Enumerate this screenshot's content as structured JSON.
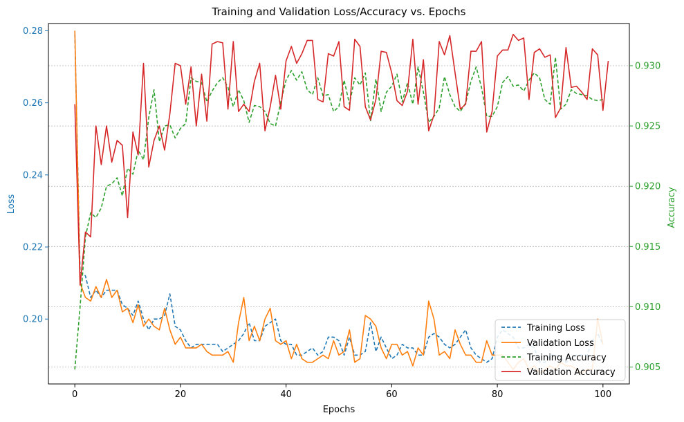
{
  "chart_data": {
    "type": "line",
    "title": "Training and Validation Loss/Accuracy vs. Epochs",
    "xlabel": "Epochs",
    "ylabel_left": "Loss",
    "ylabel_right": "Accuracy",
    "xlim": [
      -5,
      105
    ],
    "ylim_left": [
      0.182,
      0.282
    ],
    "ylim_right": [
      0.9036,
      0.9335
    ],
    "xticks": [
      0,
      20,
      40,
      60,
      80,
      100
    ],
    "yticks_left": [
      "0.20",
      "0.22",
      "0.24",
      "0.26",
      "0.28"
    ],
    "yticks_right": [
      "0.905",
      "0.910",
      "0.915",
      "0.920",
      "0.925",
      "0.930"
    ],
    "right_axis_grid": true,
    "legend_position": "lower-right",
    "left_axis_color": "#1f77b4",
    "right_axis_color": "#2ca02c",
    "series": [
      {
        "name": "Training Loss",
        "axis": "left",
        "color": "#1f77b4",
        "style": "dashed",
        "values": [
          0.279,
          0.213,
          0.212,
          0.206,
          0.208,
          0.206,
          0.208,
          0.208,
          0.208,
          0.204,
          0.203,
          0.201,
          0.205,
          0.2,
          0.197,
          0.2,
          0.2,
          0.201,
          0.207,
          0.198,
          0.197,
          0.194,
          0.192,
          0.193,
          0.193,
          0.193,
          0.193,
          0.193,
          0.191,
          0.192,
          0.193,
          0.194,
          0.196,
          0.199,
          0.194,
          0.194,
          0.198,
          0.199,
          0.2,
          0.194,
          0.193,
          0.193,
          0.19,
          0.19,
          0.191,
          0.192,
          0.19,
          0.191,
          0.195,
          0.195,
          0.194,
          0.19,
          0.195,
          0.19,
          0.19,
          0.191,
          0.199,
          0.191,
          0.195,
          0.192,
          0.189,
          0.19,
          0.193,
          0.192,
          0.192,
          0.19,
          0.19,
          0.195,
          0.196,
          0.195,
          0.193,
          0.192,
          0.193,
          0.195,
          0.197,
          0.192,
          0.19,
          0.189,
          0.188,
          0.189,
          0.195,
          0.197,
          0.196,
          0.195,
          0.192,
          0.192,
          0.193,
          0.192,
          0.188,
          0.188,
          0.19,
          0.19,
          0.189,
          0.188,
          0.189,
          0.19,
          0.19,
          0.19,
          0.194,
          0.196,
          0.193
        ]
      },
      {
        "name": "Validation Loss",
        "axis": "left",
        "color": "#ff7f0e",
        "style": "solid",
        "values": [
          0.28,
          0.21,
          0.206,
          0.205,
          0.209,
          0.206,
          0.211,
          0.206,
          0.208,
          0.202,
          0.203,
          0.199,
          0.204,
          0.198,
          0.2,
          0.198,
          0.197,
          0.203,
          0.197,
          0.193,
          0.195,
          0.192,
          0.192,
          0.192,
          0.193,
          0.191,
          0.19,
          0.19,
          0.19,
          0.191,
          0.188,
          0.199,
          0.206,
          0.194,
          0.198,
          0.194,
          0.2,
          0.203,
          0.194,
          0.193,
          0.194,
          0.189,
          0.193,
          0.189,
          0.188,
          0.188,
          0.189,
          0.19,
          0.189,
          0.194,
          0.19,
          0.191,
          0.197,
          0.188,
          0.189,
          0.201,
          0.2,
          0.198,
          0.192,
          0.189,
          0.193,
          0.193,
          0.19,
          0.191,
          0.187,
          0.192,
          0.19,
          0.205,
          0.2,
          0.19,
          0.191,
          0.189,
          0.197,
          0.193,
          0.19,
          0.19,
          0.188,
          0.188,
          0.194,
          0.19,
          0.19,
          0.19,
          0.188,
          0.186,
          0.188,
          0.189,
          0.186,
          0.187,
          0.185,
          0.186,
          0.187,
          0.186,
          0.188,
          0.187,
          0.187,
          0.186,
          0.185,
          0.186,
          0.186,
          0.2,
          0.193
        ]
      },
      {
        "name": "Training Accuracy",
        "axis": "right",
        "color": "#2ca02c",
        "style": "dashed",
        "values": [
          0.9048,
          0.91,
          0.9158,
          0.9178,
          0.9174,
          0.9182,
          0.92,
          0.9202,
          0.9207,
          0.9192,
          0.9215,
          0.921,
          0.923,
          0.9222,
          0.9257,
          0.928,
          0.9237,
          0.925,
          0.9251,
          0.924,
          0.9248,
          0.9252,
          0.929,
          0.9287,
          0.9286,
          0.927,
          0.9279,
          0.9286,
          0.929,
          0.9282,
          0.9266,
          0.928,
          0.9271,
          0.9253,
          0.9267,
          0.9266,
          0.9262,
          0.9252,
          0.925,
          0.927,
          0.9288,
          0.9296,
          0.9288,
          0.9295,
          0.928,
          0.9276,
          0.929,
          0.9275,
          0.9276,
          0.9262,
          0.9266,
          0.9288,
          0.9268,
          0.929,
          0.9284,
          0.9294,
          0.9254,
          0.9289,
          0.9262,
          0.9278,
          0.9283,
          0.9293,
          0.927,
          0.9286,
          0.9268,
          0.9299,
          0.9278,
          0.9253,
          0.9258,
          0.9265,
          0.9291,
          0.9276,
          0.9266,
          0.9262,
          0.9269,
          0.9287,
          0.9299,
          0.9282,
          0.9258,
          0.9258,
          0.9266,
          0.9286,
          0.9291,
          0.9283,
          0.9284,
          0.9279,
          0.9288,
          0.9294,
          0.929,
          0.9272,
          0.9268,
          0.9307,
          0.9264,
          0.9268,
          0.928,
          0.9277,
          0.9276,
          0.9275,
          0.9272,
          0.9271,
          0.9272
        ]
      },
      {
        "name": "Validation Accuracy",
        "axis": "right",
        "color": "#d62728",
        "style": "solid",
        "values": [
          0.9268,
          0.9118,
          0.9162,
          0.9158,
          0.925,
          0.9218,
          0.925,
          0.922,
          0.9238,
          0.9234,
          0.9174,
          0.9245,
          0.9226,
          0.9302,
          0.9216,
          0.9238,
          0.925,
          0.923,
          0.926,
          0.9302,
          0.93,
          0.9268,
          0.9299,
          0.925,
          0.9293,
          0.9254,
          0.9318,
          0.932,
          0.9319,
          0.9264,
          0.932,
          0.9262,
          0.9268,
          0.9262,
          0.9287,
          0.9302,
          0.9246,
          0.9266,
          0.9292,
          0.9264,
          0.9304,
          0.9316,
          0.9302,
          0.931,
          0.9321,
          0.9321,
          0.9272,
          0.927,
          0.931,
          0.9308,
          0.932,
          0.9266,
          0.9263,
          0.9322,
          0.9316,
          0.9266,
          0.9255,
          0.9272,
          0.9312,
          0.9311,
          0.9294,
          0.9271,
          0.9267,
          0.9279,
          0.9322,
          0.9268,
          0.9305,
          0.9246,
          0.9259,
          0.932,
          0.9309,
          0.9325,
          0.9294,
          0.9264,
          0.9268,
          0.9312,
          0.9312,
          0.932,
          0.9245,
          0.9262,
          0.9308,
          0.9313,
          0.9313,
          0.9326,
          0.9321,
          0.9323,
          0.9272,
          0.9311,
          0.9314,
          0.9307,
          0.9309,
          0.9257,
          0.9265,
          0.9315,
          0.9282,
          0.9283,
          0.9278,
          0.9272,
          0.9314,
          0.9309,
          0.9263,
          0.9304
        ]
      }
    ]
  }
}
